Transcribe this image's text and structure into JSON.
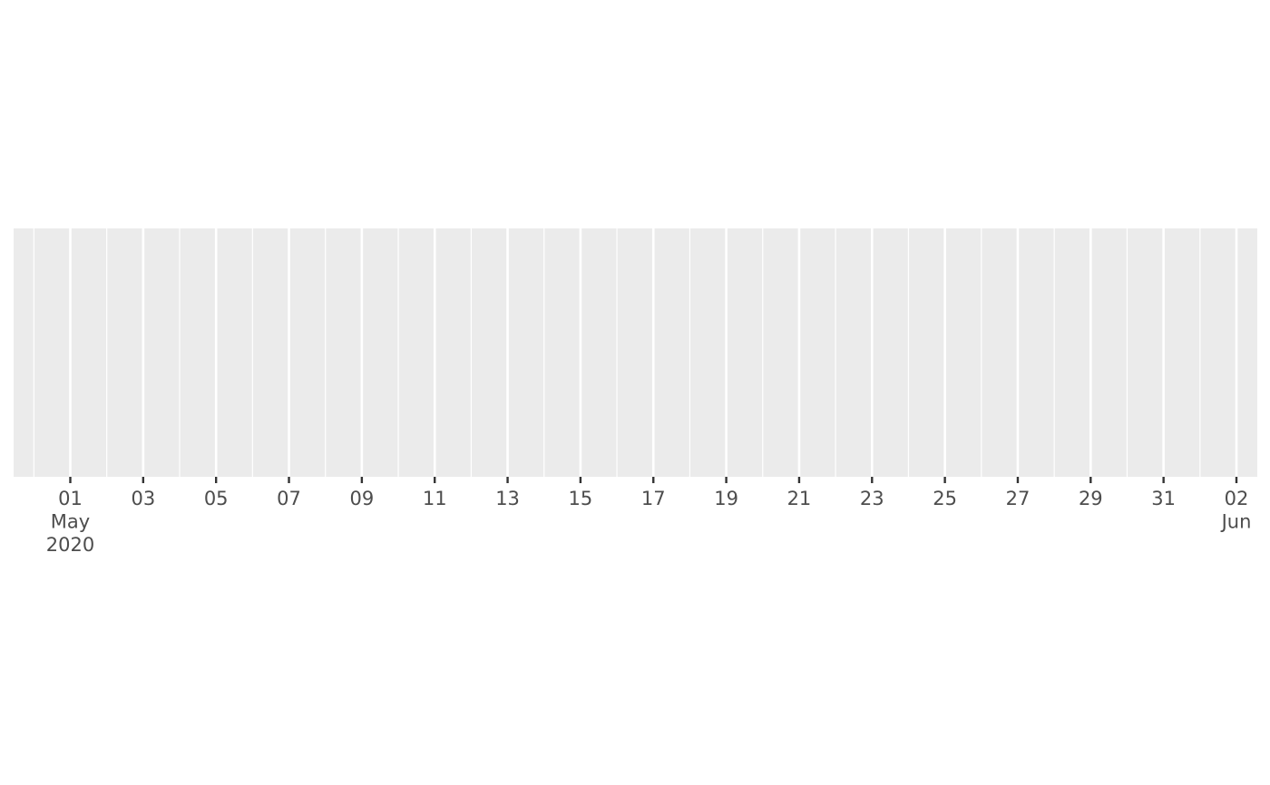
{
  "chart_data": {
    "type": "timeline",
    "title": "",
    "xlabel": "",
    "ylabel": "",
    "x_axis": {
      "type": "date",
      "range": [
        "2020-04-30",
        "2020-06-02"
      ],
      "major_ticks": [
        {
          "date": "2020-05-01",
          "label": "01",
          "month": "May",
          "year": "2020"
        },
        {
          "date": "2020-05-03",
          "label": "03"
        },
        {
          "date": "2020-05-05",
          "label": "05"
        },
        {
          "date": "2020-05-07",
          "label": "07"
        },
        {
          "date": "2020-05-09",
          "label": "09"
        },
        {
          "date": "2020-05-11",
          "label": "11"
        },
        {
          "date": "2020-05-13",
          "label": "13"
        },
        {
          "date": "2020-05-15",
          "label": "15"
        },
        {
          "date": "2020-05-17",
          "label": "17"
        },
        {
          "date": "2020-05-19",
          "label": "19"
        },
        {
          "date": "2020-05-21",
          "label": "21"
        },
        {
          "date": "2020-05-23",
          "label": "23"
        },
        {
          "date": "2020-05-25",
          "label": "25"
        },
        {
          "date": "2020-05-27",
          "label": "27"
        },
        {
          "date": "2020-05-29",
          "label": "29"
        },
        {
          "date": "2020-05-31",
          "label": "31"
        },
        {
          "date": "2020-06-02",
          "label": "02",
          "month": "Jun"
        }
      ],
      "minor_break_step_days": 1
    },
    "y_axis": {
      "visible": false
    },
    "series": [],
    "grid": true,
    "panel_background": "#ebebeb",
    "grid_color": "#ffffff",
    "legend": "none"
  }
}
